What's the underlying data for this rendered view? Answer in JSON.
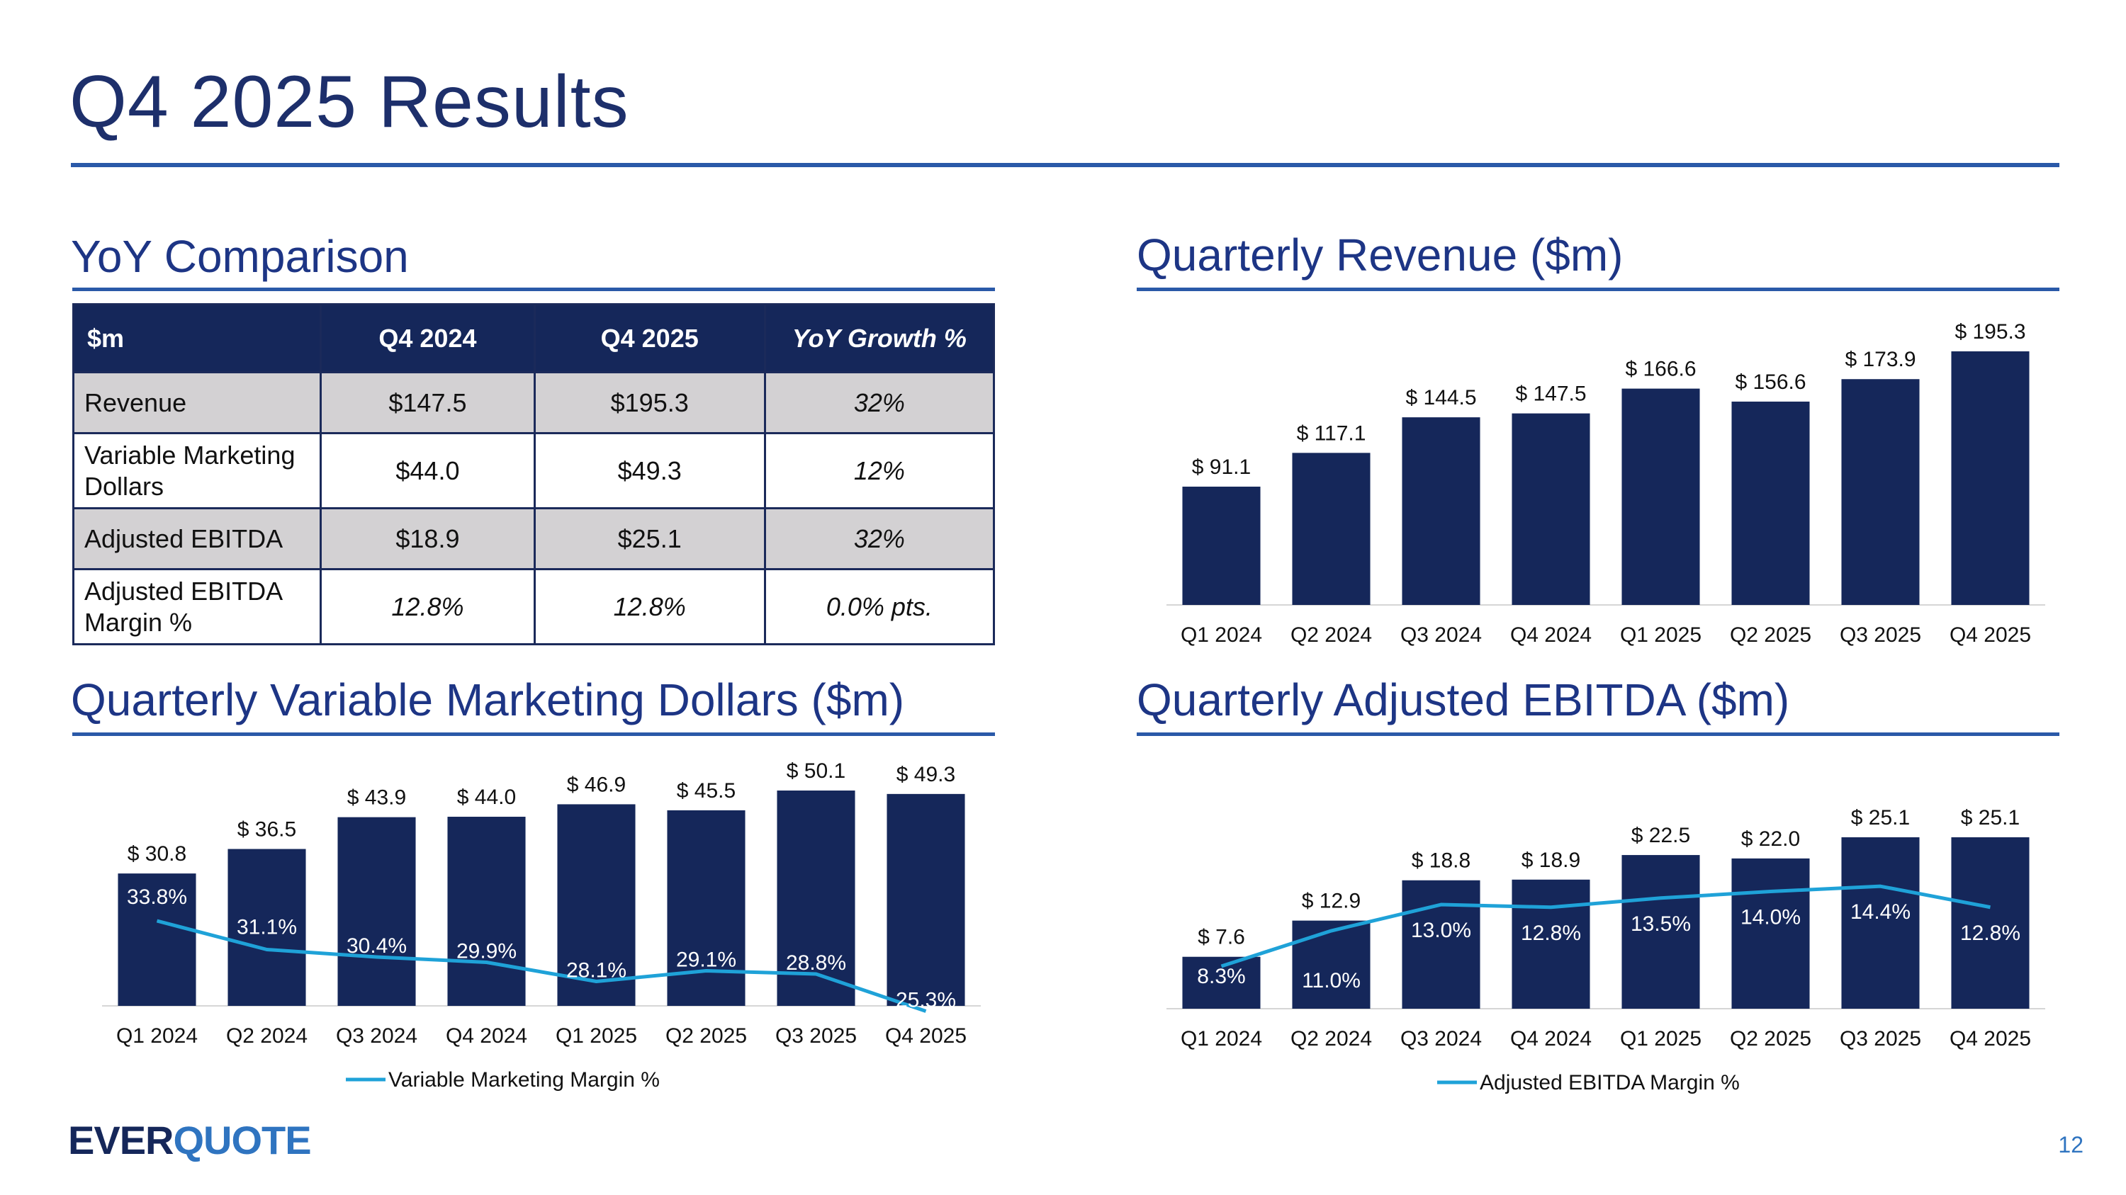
{
  "page": {
    "title": "Q4 2025 Results",
    "page_number": "12",
    "logo": {
      "part1": "EVER",
      "part2": "QUOTE"
    }
  },
  "sections": {
    "yoy": "YoY Comparison",
    "revenue": "Quarterly Revenue ($m)",
    "vmd": "Quarterly Variable Marketing Dollars ($m)",
    "ebitda": "Quarterly Adjusted EBITDA ($m)"
  },
  "yoy_table": {
    "headers": [
      "$m",
      "Q4 2024",
      "Q4 2025",
      "YoY Growth %"
    ],
    "rows": [
      {
        "label": "Revenue",
        "q4_2024": "$147.5",
        "q4_2025": "$195.3",
        "growth": "32%"
      },
      {
        "label": "Variable Marketing Dollars",
        "q4_2024": "$44.0",
        "q4_2025": "$49.3",
        "growth": "12%"
      },
      {
        "label": "Adjusted EBITDA",
        "q4_2024": "$18.9",
        "q4_2025": "$25.1",
        "growth": "32%"
      },
      {
        "label": "Adjusted EBITDA Margin %",
        "q4_2024": "12.8%",
        "q4_2025": "12.8%",
        "growth": "0.0% pts."
      }
    ]
  },
  "colors": {
    "bar": "#15275a",
    "line": "#1fa2d8",
    "accent": "#2a59a8",
    "label": "#111111"
  },
  "chart_data": [
    {
      "id": "revenue",
      "type": "bar",
      "title": "Quarterly Revenue ($m)",
      "categories": [
        "Q1 2024",
        "Q2 2024",
        "Q3 2024",
        "Q4 2024",
        "Q1 2025",
        "Q2 2025",
        "Q3 2025",
        "Q4 2025"
      ],
      "values": [
        91.1,
        117.1,
        144.5,
        147.5,
        166.6,
        156.6,
        173.9,
        195.3
      ],
      "labels": [
        "$ 91.1",
        "$ 117.1",
        "$ 144.5",
        "$ 147.5",
        "$ 166.6",
        "$ 156.6",
        "$ 173.9",
        "$ 195.3"
      ],
      "ylim": [
        0,
        195.3
      ]
    },
    {
      "id": "vmd",
      "type": "bar",
      "title": "Quarterly Variable Marketing Dollars ($m)",
      "categories": [
        "Q1 2024",
        "Q2 2024",
        "Q3 2024",
        "Q4 2024",
        "Q1 2025",
        "Q2 2025",
        "Q3 2025",
        "Q4 2025"
      ],
      "values": [
        30.8,
        36.5,
        43.9,
        44.0,
        46.9,
        45.5,
        50.1,
        49.3
      ],
      "labels": [
        "$ 30.8",
        "$ 36.5",
        "$ 43.9",
        "$ 44.0",
        "$ 46.9",
        "$ 45.5",
        "$ 50.1",
        "$ 49.3"
      ],
      "ylim": [
        0,
        50.1
      ],
      "line": {
        "name": "Variable Marketing Margin %",
        "values": [
          33.8,
          31.1,
          30.4,
          29.9,
          28.1,
          29.1,
          28.8,
          25.3
        ],
        "labels": [
          "33.8%",
          "31.1%",
          "30.4%",
          "29.9%",
          "28.1%",
          "29.1%",
          "28.8%",
          "25.3%"
        ]
      },
      "legend": {
        "label": "Variable Marketing Margin %",
        "position": "bottom"
      }
    },
    {
      "id": "ebitda",
      "type": "bar",
      "title": "Quarterly Adjusted EBITDA ($m)",
      "categories": [
        "Q1 2024",
        "Q2 2024",
        "Q3 2024",
        "Q4 2024",
        "Q1 2025",
        "Q2 2025",
        "Q3 2025",
        "Q4 2025"
      ],
      "values": [
        7.6,
        12.9,
        18.8,
        18.9,
        22.5,
        22.0,
        25.1,
        25.1
      ],
      "labels": [
        "$ 7.6",
        "$ 12.9",
        "$ 18.8",
        "$ 18.9",
        "$ 22.5",
        "$ 22.0",
        "$ 25.1",
        "$ 25.1"
      ],
      "ylim": [
        0,
        25.1
      ],
      "line": {
        "name": "Adjusted EBITDA Margin %",
        "values": [
          8.3,
          11.0,
          13.0,
          12.8,
          13.5,
          14.0,
          14.4,
          12.8
        ],
        "labels": [
          "8.3%",
          "11.0%",
          "13.0%",
          "12.8%",
          "13.5%",
          "14.0%",
          "14.4%",
          "12.8%"
        ]
      },
      "legend": {
        "label": "Adjusted EBITDA Margin %",
        "position": "bottom"
      }
    }
  ]
}
